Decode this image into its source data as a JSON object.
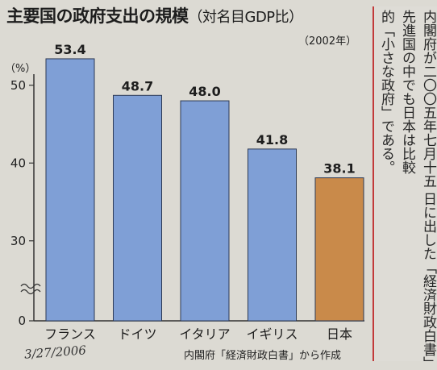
{
  "chart_data": {
    "type": "bar",
    "title": "主要国の政府支出の規模",
    "subtitle": "（対名目GDP比）",
    "note": "（2002年）",
    "ylabel": "（%）",
    "categories": [
      "フランス",
      "ドイツ",
      "イタリア",
      "イギリス",
      "日本"
    ],
    "values": [
      53.4,
      48.7,
      48.0,
      41.8,
      38.1
    ],
    "value_labels": [
      "53.4",
      "48.7",
      "48.0",
      "41.8",
      "38.1"
    ],
    "ylim": [
      0,
      55
    ],
    "yticks": [
      0,
      30,
      40,
      50
    ],
    "axis_break": true,
    "grid": false,
    "colors": {
      "bar": "#7f9fd6",
      "bar_highlight": "#c98a4a",
      "background": "#dcdad3"
    },
    "source": "内閣府「経済財政白書」から作成"
  },
  "annotation": "3/27/2006",
  "side_text": {
    "col_c": "的「小さな政府」である。",
    "col_a": "先進国の中でも日本は比較",
    "col_b": "内閣府が二〇〇五年七月十五",
    "col_d": "日に出した「経済財政白書」"
  }
}
